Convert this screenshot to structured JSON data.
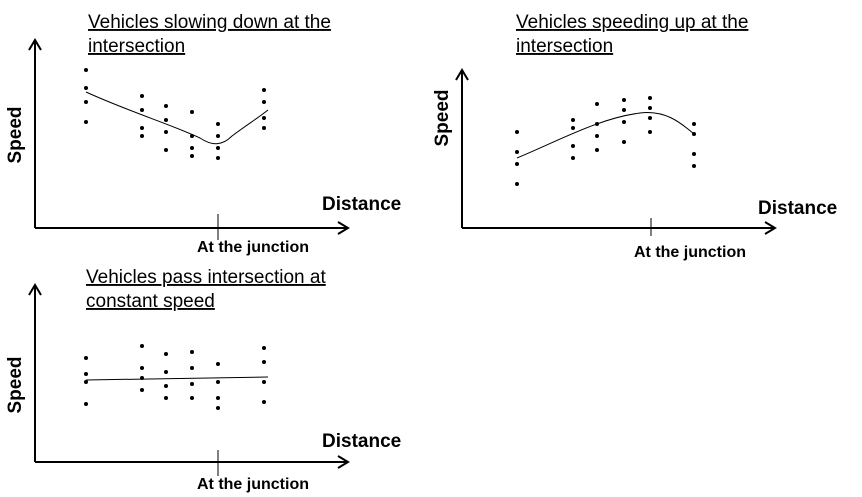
{
  "panels": [
    {
      "title_lines": [
        "Vehicles slowing down at the",
        "intersection"
      ],
      "y_label": "Speed",
      "x_label": "Distance",
      "marker_label": "At the junction"
    },
    {
      "title_lines": [
        "Vehicles speeding up at the",
        "intersection"
      ],
      "y_label": "Speed",
      "x_label": "Distance",
      "marker_label": "At the junction"
    },
    {
      "title_lines": [
        "Vehicles pass intersection at",
        "constant speed"
      ],
      "y_label": "Speed",
      "x_label": "Distance",
      "marker_label": "At the junction"
    }
  ]
}
